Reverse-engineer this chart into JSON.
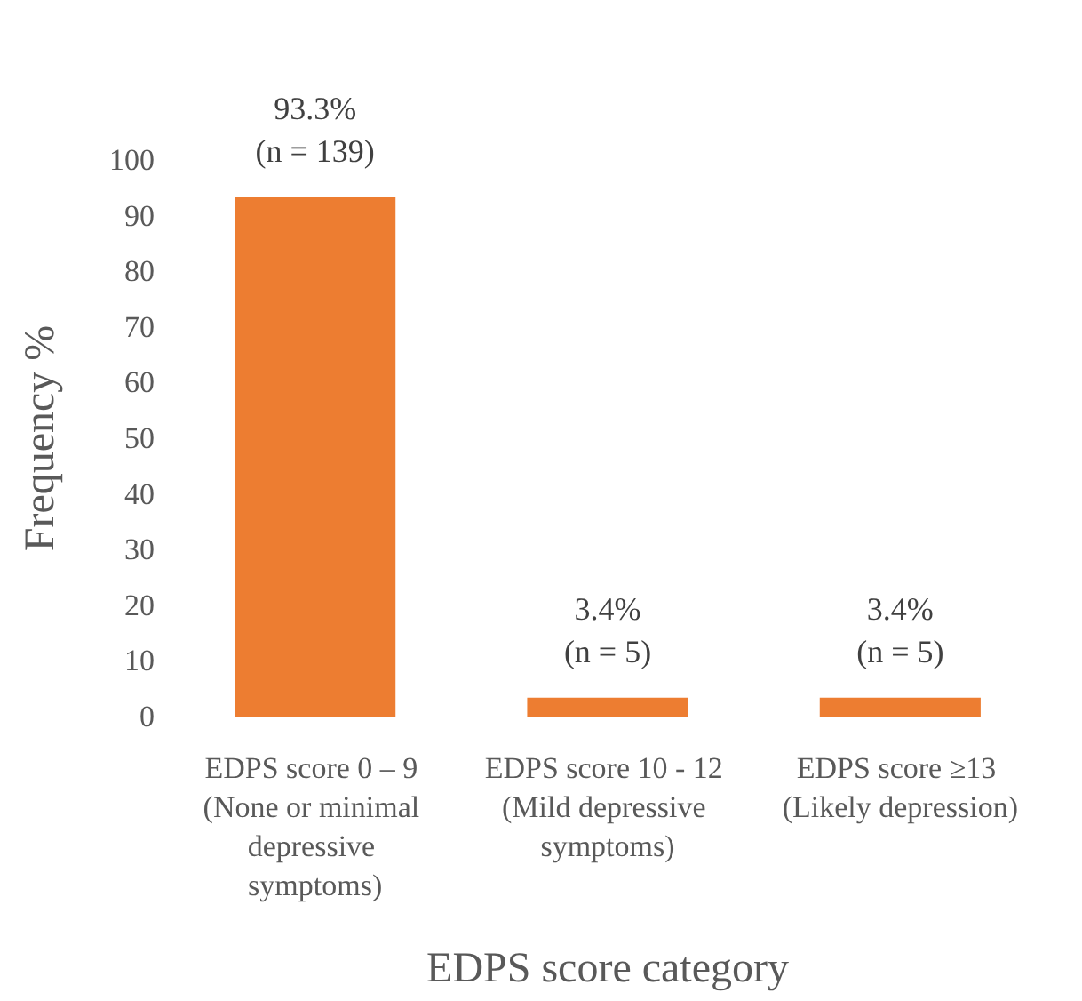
{
  "chart_data": {
    "type": "bar",
    "ylabel": "Frequency %",
    "xlabel": "EDPS score category",
    "categories": [
      "EDPS score 0 – 9 (None or minimal depressive symptoms)",
      "EDPS score 10 - 12 (Mild depressive symptoms)",
      "EDPS score ≥13 (Likely depression)"
    ],
    "values": [
      93.3,
      3.4,
      3.4
    ],
    "value_labels": [
      "93.3%\n(n = 139)",
      "3.4%\n(n = 5)",
      "3.4%\n(n = 5)"
    ],
    "color": "#ed7d31",
    "ylim": [
      0,
      100
    ],
    "yticks": [
      0,
      10,
      20,
      30,
      40,
      50,
      60,
      70,
      80,
      90,
      100
    ],
    "grid": false
  }
}
